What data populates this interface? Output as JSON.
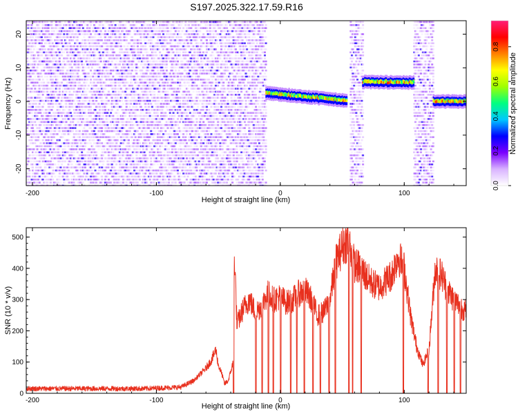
{
  "title": "S197.2025.322.17.59.R16",
  "chart_data": [
    {
      "type": "heatmap",
      "xlabel": "Height of straight line (km)",
      "ylabel": "Frequency (Hz)",
      "xlim": [
        -205,
        150
      ],
      "ylim": [
        -25,
        24
      ],
      "xticks": [
        -200,
        -100,
        0,
        100
      ],
      "yticks": [
        -20,
        -10,
        0,
        10,
        20
      ],
      "colorbar": {
        "label": "Normalized spectral amplitude",
        "range": [
          0,
          0.95
        ],
        "ticks": [
          0.0,
          0.2,
          0.4,
          0.6,
          0.8
        ],
        "tick_labels": [
          "0.0",
          "0.2",
          "0.4",
          "0.6",
          "0.8"
        ],
        "colors": [
          "#ffffff",
          "#d9b3ff",
          "#7a00ff",
          "#0000ff",
          "#00c8ff",
          "#00ff80",
          "#a0ff00",
          "#ffff00",
          "#ff8000",
          "#ff0000",
          "#ff1e78"
        ]
      },
      "noise_regions": [
        [
          -205,
          -12
        ],
        [
          56,
          66
        ],
        [
          107,
          123
        ]
      ],
      "noise_level": 0.15,
      "signal_tracks": [
        {
          "x_start": -12,
          "x_end": 53,
          "freq_start": 2.5,
          "freq_end": 0.2,
          "amplitude": 0.85
        },
        {
          "x_start": 66,
          "x_end": 107,
          "freq_start": 5.8,
          "freq_end": 5.6,
          "amplitude": 0.9
        },
        {
          "x_start": 123,
          "x_end": 150,
          "freq_start": 0.0,
          "freq_end": 0.0,
          "amplitude": 0.9
        }
      ]
    },
    {
      "type": "line",
      "xlabel": "Height of straight line (km)",
      "ylabel": "SNR (10 * v/v)",
      "xlim": [
        -205,
        150
      ],
      "ylim": [
        0,
        530
      ],
      "xticks": [
        -200,
        -100,
        0,
        100
      ],
      "yticks": [
        0,
        100,
        200,
        300,
        400,
        500
      ],
      "color": "#e8301e",
      "series": [
        {
          "name": "SNR",
          "x": [
            -205,
            -190,
            -170,
            -150,
            -130,
            -110,
            -90,
            -80,
            -75,
            -70,
            -65,
            -60,
            -55,
            -52,
            -50,
            -47,
            -45,
            -42,
            -38,
            -37,
            -35,
            -30,
            -25,
            -20,
            -15,
            -10,
            -5,
            0,
            5,
            10,
            15,
            20,
            25,
            30,
            35,
            40,
            45,
            50,
            55,
            60,
            65,
            70,
            75,
            80,
            85,
            90,
            95,
            100,
            105,
            110,
            115,
            120,
            125,
            130,
            135,
            140,
            145,
            150
          ],
          "values": [
            15,
            15,
            15,
            15,
            15,
            15,
            18,
            20,
            30,
            40,
            60,
            80,
            110,
            140,
            90,
            60,
            30,
            40,
            100,
            450,
            220,
            270,
            300,
            260,
            280,
            320,
            300,
            310,
            290,
            300,
            320,
            330,
            300,
            250,
            260,
            300,
            420,
            470,
            490,
            410,
            400,
            370,
            350,
            340,
            360,
            380,
            440,
            400,
            250,
            150,
            90,
            140,
            400,
            380,
            330,
            300,
            280,
            260
          ]
        }
      ],
      "dropouts": [
        [
          -38,
          -37.3
        ],
        [
          -20,
          -19.3
        ],
        [
          -15,
          -14.3
        ],
        [
          -10,
          -9.3
        ],
        [
          -6,
          -5.3
        ],
        [
          0,
          0.7
        ],
        [
          8,
          8.7
        ],
        [
          13,
          13.7
        ],
        [
          19,
          19.7
        ],
        [
          26,
          26.7
        ],
        [
          32,
          32.7
        ],
        [
          39,
          39.7
        ],
        [
          44,
          44.7
        ],
        [
          55,
          55.7
        ],
        [
          58,
          58.7
        ],
        [
          65,
          65.7
        ],
        [
          99,
          99.7
        ],
        [
          119,
          119.7
        ],
        [
          127,
          127.7
        ],
        [
          134,
          134.7
        ],
        [
          140,
          140.7
        ],
        [
          145,
          145.7
        ]
      ]
    }
  ]
}
